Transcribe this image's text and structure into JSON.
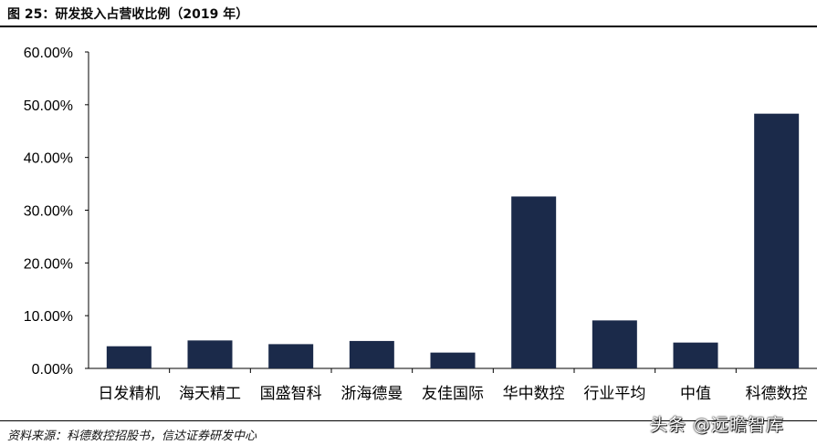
{
  "header": {
    "title": "图 25：研发投入占营收比例（2019 年）"
  },
  "chart_data": {
    "type": "bar",
    "categories": [
      "日发精机",
      "海天精工",
      "国盛智科",
      "浙海德曼",
      "友佳国际",
      "华中数控",
      "行业平均",
      "中值",
      "科德数控"
    ],
    "values": [
      4.2,
      5.3,
      4.6,
      5.2,
      3.0,
      32.6,
      9.1,
      4.9,
      48.3
    ],
    "yticks": [
      "0.00%",
      "10.00%",
      "20.00%",
      "30.00%",
      "40.00%",
      "50.00%",
      "60.00%"
    ],
    "ylim": [
      0,
      60
    ],
    "bar_color": "#1b2a4a",
    "grid": false
  },
  "footer": {
    "source": "资料来源：科德数控招股书，信达证券研发中心",
    "watermark": "头条 @远瞻智库"
  }
}
